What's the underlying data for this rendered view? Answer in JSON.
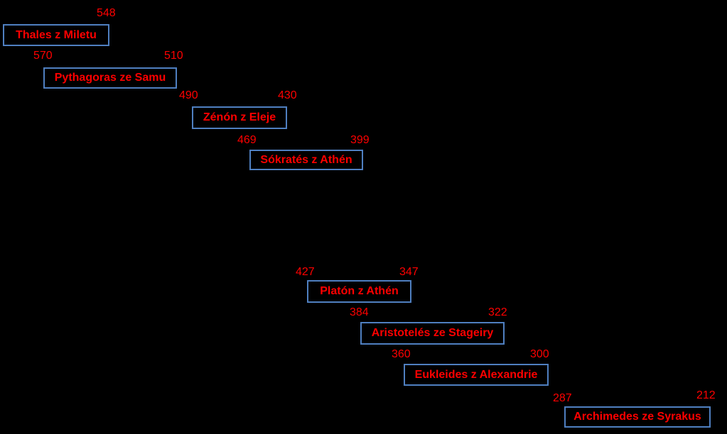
{
  "colors": {
    "background": "#000000",
    "text": "#ff0000",
    "box_border": "#4f7fc0"
  },
  "philosophers": [
    {
      "name": "Thales z Miletu",
      "birth": "",
      "death": "548"
    },
    {
      "name": "Pythagoras ze Samu",
      "birth": "570",
      "death": "510"
    },
    {
      "name": "Zénón z Eleje",
      "birth": "490",
      "death": "430"
    },
    {
      "name": "Sókratés z Athén",
      "birth": "469",
      "death": "399"
    },
    {
      "name": "Platón z Athén",
      "birth": "427",
      "death": "347"
    },
    {
      "name": "Aristotelés ze Stageiry",
      "birth": "384",
      "death": "322"
    },
    {
      "name": "Eukleides z Alexandrie",
      "birth": "360",
      "death": "300"
    },
    {
      "name": "Archimedes ze Syrakus",
      "birth": "287",
      "death": "212"
    }
  ]
}
